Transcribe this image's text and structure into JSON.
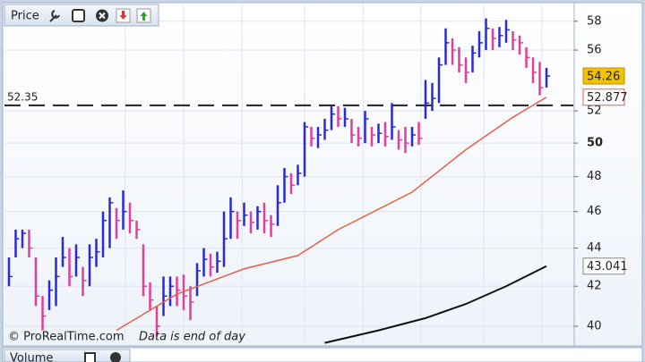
{
  "chart_data": {
    "type": "ohlc",
    "title": "Price",
    "scale": "log",
    "grid": true,
    "ylim": [
      39.14,
      59.2
    ],
    "yticks": [
      40,
      42,
      44,
      46,
      48,
      50,
      52,
      56,
      58
    ],
    "high": [
      43.5,
      45,
      45,
      45,
      43.5,
      41.5,
      42.3,
      43.5,
      44.6,
      44,
      44.2,
      43,
      44.2,
      44.5,
      46,
      46.8,
      46.2,
      47.2,
      46.5,
      45.5,
      44.2,
      42.2,
      41,
      42.5,
      42.5,
      42.5,
      42.6,
      42,
      43.2,
      44,
      43.7,
      43.8,
      46,
      46.8,
      46,
      46.5,
      46,
      46.3,
      46.5,
      45.8,
      47.5,
      48.5,
      48.2,
      48.7,
      51.3,
      51,
      51,
      51.5,
      52.3,
      52.3,
      52.2,
      51.5,
      51,
      52,
      51,
      51.2,
      51.3,
      52.5,
      50.8,
      51,
      51,
      51.3,
      54,
      53.8,
      55.5,
      57.5,
      56.8,
      56.2,
      55.5,
      56.3,
      57.3,
      58.2,
      57.5,
      57.6,
      58.1,
      57.3,
      57,
      56.2,
      55.5,
      55.2,
      54.8
    ],
    "low": [
      42,
      43.5,
      44,
      43.5,
      41,
      39.8,
      40.8,
      41,
      43,
      42,
      42.5,
      41.5,
      42,
      43,
      43.5,
      44,
      44.5,
      45,
      44.8,
      44.5,
      41.5,
      40.8,
      39.5,
      40.5,
      41,
      41,
      40.8,
      40.3,
      41.5,
      42.5,
      42.5,
      42.7,
      43,
      44.5,
      44.5,
      45.2,
      44.8,
      45,
      44.8,
      44.6,
      45.2,
      46.5,
      47,
      47.5,
      48,
      49.8,
      49.7,
      50.2,
      50.8,
      51,
      51,
      50,
      49.8,
      50,
      49.8,
      50,
      49.8,
      50.2,
      49.6,
      49.4,
      49.8,
      49.9,
      51.5,
      52,
      52.5,
      55,
      55,
      54.5,
      53.8,
      54.5,
      55.5,
      56,
      56,
      56.2,
      56.5,
      56,
      55.7,
      54.8,
      53.8,
      53,
      53.5
    ],
    "close": [
      42.5,
      44.5,
      44.8,
      44,
      41.5,
      40.5,
      41.8,
      42.5,
      43.5,
      42.5,
      43.5,
      42.3,
      43.5,
      43.8,
      45.5,
      46.5,
      45.5,
      46,
      45.5,
      45,
      42,
      41.3,
      40,
      41.5,
      42,
      41.8,
      41.5,
      41.2,
      42.8,
      43.4,
      43,
      43.3,
      44.5,
      46,
      45.5,
      45.8,
      45.4,
      46,
      45.5,
      45.3,
      46.5,
      48,
      47.5,
      48.2,
      51,
      50.3,
      50.5,
      50.8,
      51.8,
      51.5,
      51.5,
      50.5,
      50.3,
      51.5,
      50.5,
      50.6,
      50.4,
      51,
      50.2,
      50,
      50.5,
      50.3,
      52.5,
      52.8,
      55,
      56.5,
      56,
      55,
      54.5,
      55.8,
      56.5,
      57.5,
      56.8,
      57,
      57.4,
      56.7,
      56.5,
      55.5,
      54.5,
      53.5,
      54.26
    ],
    "up_color": "#2b2bd6",
    "down_color": "#e0409c",
    "series": [
      {
        "color": "#e8604c",
        "x": [
          16,
          25,
          35,
          43,
          49,
          60,
          68,
          75,
          80
        ],
        "values": [
          39.8,
          41.6,
          42.9,
          43.6,
          45.0,
          47.1,
          49.6,
          51.6,
          52.877
        ]
      },
      {
        "color": "#111111",
        "x": [
          47,
          55,
          62,
          68,
          74,
          80
        ],
        "values": [
          39.2,
          39.8,
          40.4,
          41.1,
          42.0,
          43.041
        ]
      }
    ],
    "hline": 52.35,
    "footer": "© ProRealTime.com",
    "footer_note": "Data is end of day",
    "volume_title": "Volume"
  }
}
